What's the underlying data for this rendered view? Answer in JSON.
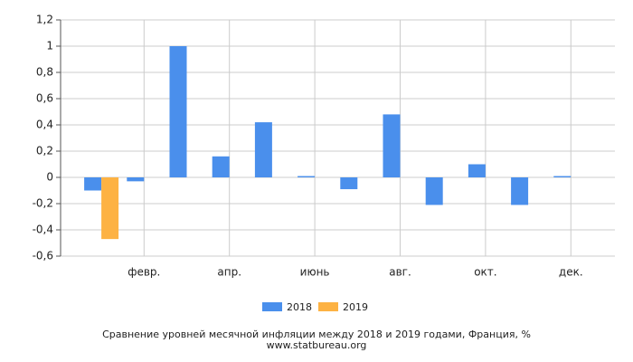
{
  "chart_data": {
    "type": "bar",
    "title": "Сравнение уровней месячной инфляции между 2018 и 2019 годами, Франция, %",
    "source": "www.statbureau.org",
    "categories": [
      null,
      "февр.",
      null,
      "апр.",
      null,
      "июнь",
      null,
      "авг.",
      null,
      "окт.",
      null,
      "дек."
    ],
    "series": [
      {
        "name": "2018",
        "color": "#4a8fec",
        "values": [
          -0.1,
          -0.03,
          1.0,
          0.16,
          0.42,
          0.01,
          -0.09,
          0.48,
          -0.21,
          0.1,
          -0.21,
          0.01
        ]
      },
      {
        "name": "2019",
        "color": "#fdb243",
        "values": [
          -0.47,
          null,
          null,
          null,
          null,
          null,
          null,
          null,
          null,
          null,
          null,
          null
        ]
      }
    ],
    "ylim": [
      -0.6,
      1.2
    ],
    "yticks": [
      {
        "value": -0.6,
        "label": "-0,6"
      },
      {
        "value": -0.4,
        "label": "-0,4"
      },
      {
        "value": -0.2,
        "label": "-0,2"
      },
      0,
      {
        "value": 0.2,
        "label": "0,2"
      },
      {
        "value": 0.4,
        "label": "0,4"
      },
      {
        "value": 0.6,
        "label": "0,6"
      },
      {
        "value": 0.8,
        "label": "0,8"
      },
      1,
      {
        "value": 1.2,
        "label": "1,2"
      }
    ],
    "grid": true,
    "legend": "bottom"
  }
}
